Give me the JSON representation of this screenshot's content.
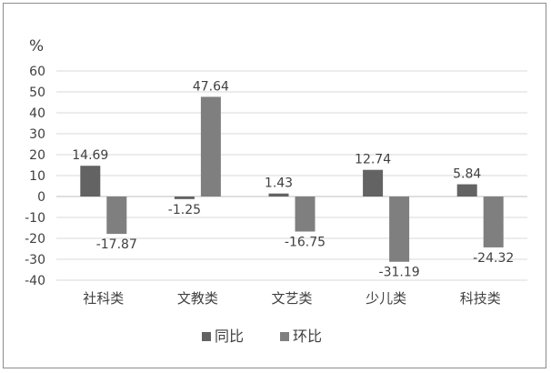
{
  "chart_data": {
    "type": "bar",
    "unit_label": "%",
    "categories": [
      "社科类",
      "文教类",
      "文艺类",
      "少儿类",
      "科技类"
    ],
    "series": [
      {
        "name": "同比",
        "values": [
          14.69,
          -1.25,
          1.43,
          12.74,
          5.84
        ],
        "labels": [
          "14.69",
          "-1.25",
          "1.43",
          "12.74",
          "5.84"
        ],
        "color": "#636363"
      },
      {
        "name": "环比",
        "values": [
          -17.87,
          47.64,
          -16.75,
          -31.19,
          -24.32
        ],
        "labels": [
          "-17.87",
          "47.64",
          "-16.75",
          "-31.19",
          "-24.32"
        ],
        "color": "#7f7f7f"
      }
    ],
    "ylim": [
      -40,
      60
    ],
    "yticks": [
      60,
      50,
      40,
      30,
      20,
      10,
      0,
      -10,
      -20,
      -30,
      -40
    ],
    "grid": true,
    "legend_position": "bottom",
    "title": "",
    "xlabel": "",
    "ylabel": ""
  }
}
